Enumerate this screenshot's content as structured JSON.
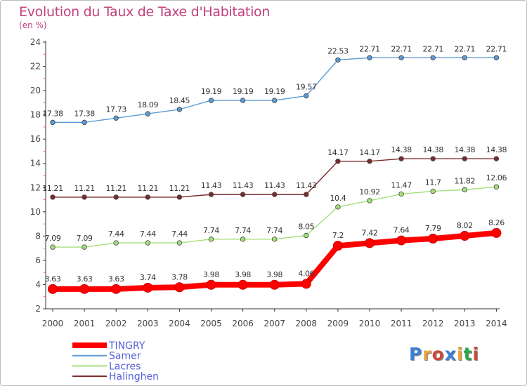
{
  "header": {
    "title": "Evolution du Taux de Taxe d'Habitation",
    "unit": "(en %)"
  },
  "logo": {
    "text": "Proxiti",
    "letter_colors": [
      "#3a7fd5",
      "#e8a23a",
      "#c94a3a",
      "#3a7fd5",
      "#e8a23a",
      "#2aa84a",
      "#c94a3a"
    ]
  },
  "chart_data": {
    "type": "line",
    "title": "Evolution du Taux de Taxe d'Habitation",
    "ylabel": "(en %)",
    "xlabel": "",
    "x": [
      "2000",
      "2001",
      "2002",
      "2003",
      "2004",
      "2005",
      "2006",
      "2007",
      "2008",
      "2009",
      "2010",
      "2011",
      "2012",
      "2013",
      "2014"
    ],
    "ylim": [
      2,
      24
    ],
    "yticks": [
      "2",
      "4",
      "6",
      "8",
      "10",
      "12",
      "14",
      "16",
      "18",
      "20",
      "22",
      "24"
    ],
    "grid": false,
    "legend_position": "bottom-left",
    "series": [
      {
        "name": "TINGRY",
        "color": "#ff0000",
        "emphasis": true,
        "values": [
          3.63,
          3.63,
          3.63,
          3.74,
          3.78,
          3.98,
          3.98,
          3.98,
          4.06,
          7.2,
          7.42,
          7.64,
          7.79,
          8.02,
          8.26
        ],
        "labels": [
          "3.63",
          "3.63",
          "3.63",
          "3.74",
          "3.78",
          "3.98",
          "3.98",
          "3.98",
          "4.06",
          "7.2",
          "7.42",
          "7.64",
          "7.79",
          "8.02",
          "8.26"
        ]
      },
      {
        "name": "Samer",
        "color": "#5b9bd5",
        "emphasis": false,
        "values": [
          17.38,
          17.38,
          17.73,
          18.09,
          18.45,
          19.19,
          19.19,
          19.19,
          19.57,
          22.53,
          22.71,
          22.71,
          22.71,
          22.71,
          22.71
        ],
        "labels": [
          "17.38",
          "17.38",
          "17.73",
          "18.09",
          "18.45",
          "19.19",
          "19.19",
          "19.19",
          "19.57",
          "22.53",
          "22.71",
          "22.71",
          "22.71",
          "22.71",
          "22.71"
        ]
      },
      {
        "name": "Lacres",
        "color": "#a3e07a",
        "emphasis": false,
        "values": [
          7.09,
          7.09,
          7.44,
          7.44,
          7.44,
          7.74,
          7.74,
          7.74,
          8.05,
          10.4,
          10.92,
          11.47,
          11.7,
          11.82,
          12.06
        ],
        "labels": [
          "7.09",
          "7.09",
          "7.44",
          "7.44",
          "7.44",
          "7.74",
          "7.74",
          "7.74",
          "8.05",
          "10.4",
          "10.92",
          "11.47",
          "11.7",
          "11.82",
          "12.06"
        ]
      },
      {
        "name": "Halinghen",
        "color": "#7a2a2a",
        "emphasis": false,
        "values": [
          11.21,
          11.21,
          11.21,
          11.21,
          11.21,
          11.43,
          11.43,
          11.43,
          11.43,
          14.17,
          14.17,
          14.38,
          14.38,
          14.38,
          14.38
        ],
        "labels": [
          "11.21",
          "11.21",
          "11.21",
          "11.21",
          "11.21",
          "11.43",
          "11.43",
          "11.43",
          "11.43",
          "14.17",
          "14.17",
          "14.38",
          "14.38",
          "14.38",
          "14.38"
        ]
      }
    ]
  }
}
